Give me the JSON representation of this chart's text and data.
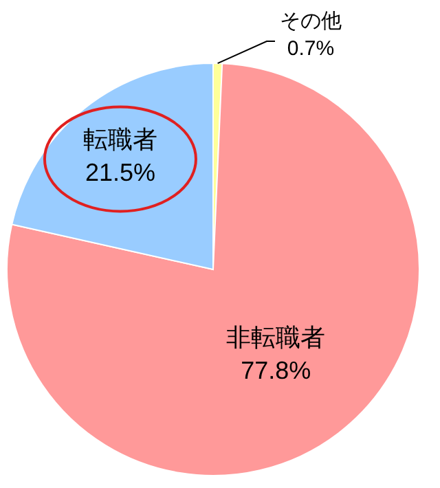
{
  "chart_data": {
    "type": "pie",
    "categories": [
      "その他",
      "非転職者",
      "転職者"
    ],
    "values": [
      0.7,
      77.8,
      21.5
    ],
    "value_labels": [
      "0.7%",
      "77.8%",
      "21.5%"
    ],
    "colors": [
      "#ffff99",
      "#ff9999",
      "#99ccff"
    ]
  }
}
